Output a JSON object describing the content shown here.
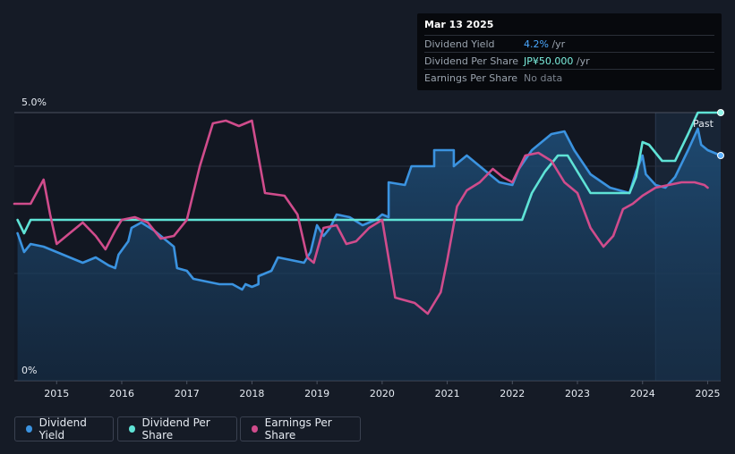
{
  "tooltip": {
    "date": "Mar 13 2025",
    "rows": [
      {
        "label": "Dividend Yield",
        "value": "4.2%",
        "unit": " /yr",
        "color": "#4aa8ff"
      },
      {
        "label": "Dividend Per Share",
        "value": "JP¥50.000",
        "unit": " /yr",
        "color": "#7df0df"
      },
      {
        "label": "Earnings Per Share",
        "value": "No data",
        "unit": "",
        "color": "#7b838e"
      }
    ]
  },
  "past_label": "Past",
  "legend": [
    {
      "label": "Dividend Yield",
      "color": "#3b93e0"
    },
    {
      "label": "Dividend Per Share",
      "color": "#5fe3d6"
    },
    {
      "label": "Earnings Per Share",
      "color": "#d04c8c"
    }
  ],
  "chart_data": {
    "type": "line",
    "y_ticks": [
      "5.0%",
      "0%"
    ],
    "ylim": [
      0,
      5
    ],
    "x_ticks": [
      "2015",
      "2016",
      "2017",
      "2018",
      "2019",
      "2020",
      "2021",
      "2022",
      "2023",
      "2024",
      "2025"
    ],
    "xlim": [
      2014.35,
      2025.2
    ],
    "forecast_start": 2024.2,
    "series": [
      {
        "name": "Dividend Yield",
        "color": "#3b93e0",
        "fill": true,
        "points": [
          [
            2014.4,
            2.75
          ],
          [
            2014.5,
            2.4
          ],
          [
            2014.6,
            2.55
          ],
          [
            2014.8,
            2.5
          ],
          [
            2015.0,
            2.4
          ],
          [
            2015.2,
            2.3
          ],
          [
            2015.4,
            2.2
          ],
          [
            2015.6,
            2.3
          ],
          [
            2015.8,
            2.15
          ],
          [
            2015.9,
            2.1
          ],
          [
            2015.95,
            2.35
          ],
          [
            2016.1,
            2.6
          ],
          [
            2016.15,
            2.85
          ],
          [
            2016.3,
            2.95
          ],
          [
            2016.5,
            2.8
          ],
          [
            2016.7,
            2.6
          ],
          [
            2016.8,
            2.5
          ],
          [
            2016.85,
            2.1
          ],
          [
            2017.0,
            2.05
          ],
          [
            2017.1,
            1.9
          ],
          [
            2017.3,
            1.85
          ],
          [
            2017.5,
            1.8
          ],
          [
            2017.7,
            1.8
          ],
          [
            2017.85,
            1.7
          ],
          [
            2017.9,
            1.8
          ],
          [
            2018.0,
            1.75
          ],
          [
            2018.1,
            1.8
          ],
          [
            2018.1,
            1.95
          ],
          [
            2018.3,
            2.05
          ],
          [
            2018.4,
            2.3
          ],
          [
            2018.6,
            2.25
          ],
          [
            2018.8,
            2.2
          ],
          [
            2018.9,
            2.4
          ],
          [
            2019.0,
            2.9
          ],
          [
            2019.1,
            2.7
          ],
          [
            2019.2,
            2.85
          ],
          [
            2019.3,
            3.1
          ],
          [
            2019.5,
            3.05
          ],
          [
            2019.7,
            2.9
          ],
          [
            2019.9,
            3.0
          ],
          [
            2020.0,
            3.1
          ],
          [
            2020.1,
            3.05
          ],
          [
            2020.1,
            3.7
          ],
          [
            2020.35,
            3.65
          ],
          [
            2020.45,
            4.0
          ],
          [
            2020.8,
            4.0
          ],
          [
            2020.8,
            4.3
          ],
          [
            2021.1,
            4.3
          ],
          [
            2021.1,
            4.0
          ],
          [
            2021.3,
            4.2
          ],
          [
            2021.4,
            4.1
          ],
          [
            2021.6,
            3.9
          ],
          [
            2021.8,
            3.7
          ],
          [
            2022.0,
            3.65
          ],
          [
            2022.1,
            3.95
          ],
          [
            2022.3,
            4.3
          ],
          [
            2022.6,
            4.6
          ],
          [
            2022.8,
            4.65
          ],
          [
            2022.95,
            4.3
          ],
          [
            2023.2,
            3.85
          ],
          [
            2023.5,
            3.6
          ],
          [
            2023.8,
            3.5
          ],
          [
            2023.9,
            3.9
          ],
          [
            2024.0,
            4.2
          ],
          [
            2024.05,
            3.85
          ],
          [
            2024.2,
            3.65
          ],
          [
            2024.35,
            3.6
          ],
          [
            2024.5,
            3.8
          ],
          [
            2024.7,
            4.3
          ],
          [
            2024.85,
            4.7
          ],
          [
            2024.9,
            4.4
          ],
          [
            2025.0,
            4.3
          ],
          [
            2025.2,
            4.2
          ]
        ]
      },
      {
        "name": "Dividend Per Share",
        "color": "#5fe3d6",
        "fill": false,
        "points": [
          [
            2014.4,
            3.0
          ],
          [
            2014.5,
            2.75
          ],
          [
            2014.6,
            3.0
          ],
          [
            2015.0,
            3.0
          ],
          [
            2016.0,
            3.0
          ],
          [
            2017.0,
            3.0
          ],
          [
            2018.0,
            3.0
          ],
          [
            2019.0,
            3.0
          ],
          [
            2020.0,
            3.0
          ],
          [
            2021.0,
            3.0
          ],
          [
            2022.0,
            3.0
          ],
          [
            2022.15,
            3.0
          ],
          [
            2022.3,
            3.5
          ],
          [
            2022.5,
            3.9
          ],
          [
            2022.7,
            4.2
          ],
          [
            2022.85,
            4.2
          ],
          [
            2023.0,
            3.9
          ],
          [
            2023.2,
            3.5
          ],
          [
            2023.5,
            3.5
          ],
          [
            2023.8,
            3.5
          ],
          [
            2023.9,
            3.8
          ],
          [
            2024.0,
            4.45
          ],
          [
            2024.1,
            4.4
          ],
          [
            2024.3,
            4.1
          ],
          [
            2024.5,
            4.1
          ],
          [
            2024.7,
            4.6
          ],
          [
            2024.85,
            5.0
          ],
          [
            2025.0,
            5.0
          ],
          [
            2025.2,
            5.0
          ]
        ]
      },
      {
        "name": "Earnings Per Share",
        "color": "#d04c8c",
        "fill": false,
        "points": [
          [
            2014.35,
            3.3
          ],
          [
            2014.6,
            3.3
          ],
          [
            2014.8,
            3.75
          ],
          [
            2014.9,
            3.1
          ],
          [
            2015.0,
            2.55
          ],
          [
            2015.2,
            2.75
          ],
          [
            2015.4,
            2.95
          ],
          [
            2015.6,
            2.7
          ],
          [
            2015.75,
            2.45
          ],
          [
            2015.9,
            2.8
          ],
          [
            2016.0,
            3.0
          ],
          [
            2016.2,
            3.05
          ],
          [
            2016.4,
            2.95
          ],
          [
            2016.6,
            2.65
          ],
          [
            2016.8,
            2.7
          ],
          [
            2017.0,
            3.0
          ],
          [
            2017.2,
            4.0
          ],
          [
            2017.4,
            4.8
          ],
          [
            2017.6,
            4.85
          ],
          [
            2017.8,
            4.75
          ],
          [
            2018.0,
            4.85
          ],
          [
            2018.2,
            3.5
          ],
          [
            2018.5,
            3.45
          ],
          [
            2018.7,
            3.1
          ],
          [
            2018.85,
            2.3
          ],
          [
            2018.95,
            2.2
          ],
          [
            2019.1,
            2.85
          ],
          [
            2019.3,
            2.9
          ],
          [
            2019.45,
            2.55
          ],
          [
            2019.6,
            2.6
          ],
          [
            2019.8,
            2.85
          ],
          [
            2020.0,
            3.0
          ],
          [
            2020.2,
            1.55
          ],
          [
            2020.5,
            1.45
          ],
          [
            2020.7,
            1.25
          ],
          [
            2020.9,
            1.65
          ],
          [
            2021.0,
            2.25
          ],
          [
            2021.15,
            3.25
          ],
          [
            2021.3,
            3.55
          ],
          [
            2021.5,
            3.7
          ],
          [
            2021.7,
            3.95
          ],
          [
            2021.85,
            3.8
          ],
          [
            2022.0,
            3.7
          ],
          [
            2022.2,
            4.2
          ],
          [
            2022.4,
            4.25
          ],
          [
            2022.6,
            4.1
          ],
          [
            2022.8,
            3.7
          ],
          [
            2023.0,
            3.5
          ],
          [
            2023.2,
            2.85
          ],
          [
            2023.4,
            2.5
          ],
          [
            2023.55,
            2.7
          ],
          [
            2023.7,
            3.2
          ],
          [
            2023.85,
            3.3
          ],
          [
            2024.0,
            3.45
          ],
          [
            2024.2,
            3.6
          ],
          [
            2024.4,
            3.65
          ],
          [
            2024.6,
            3.7
          ],
          [
            2024.8,
            3.7
          ],
          [
            2024.95,
            3.65
          ],
          [
            2025.0,
            3.6
          ]
        ]
      }
    ]
  }
}
